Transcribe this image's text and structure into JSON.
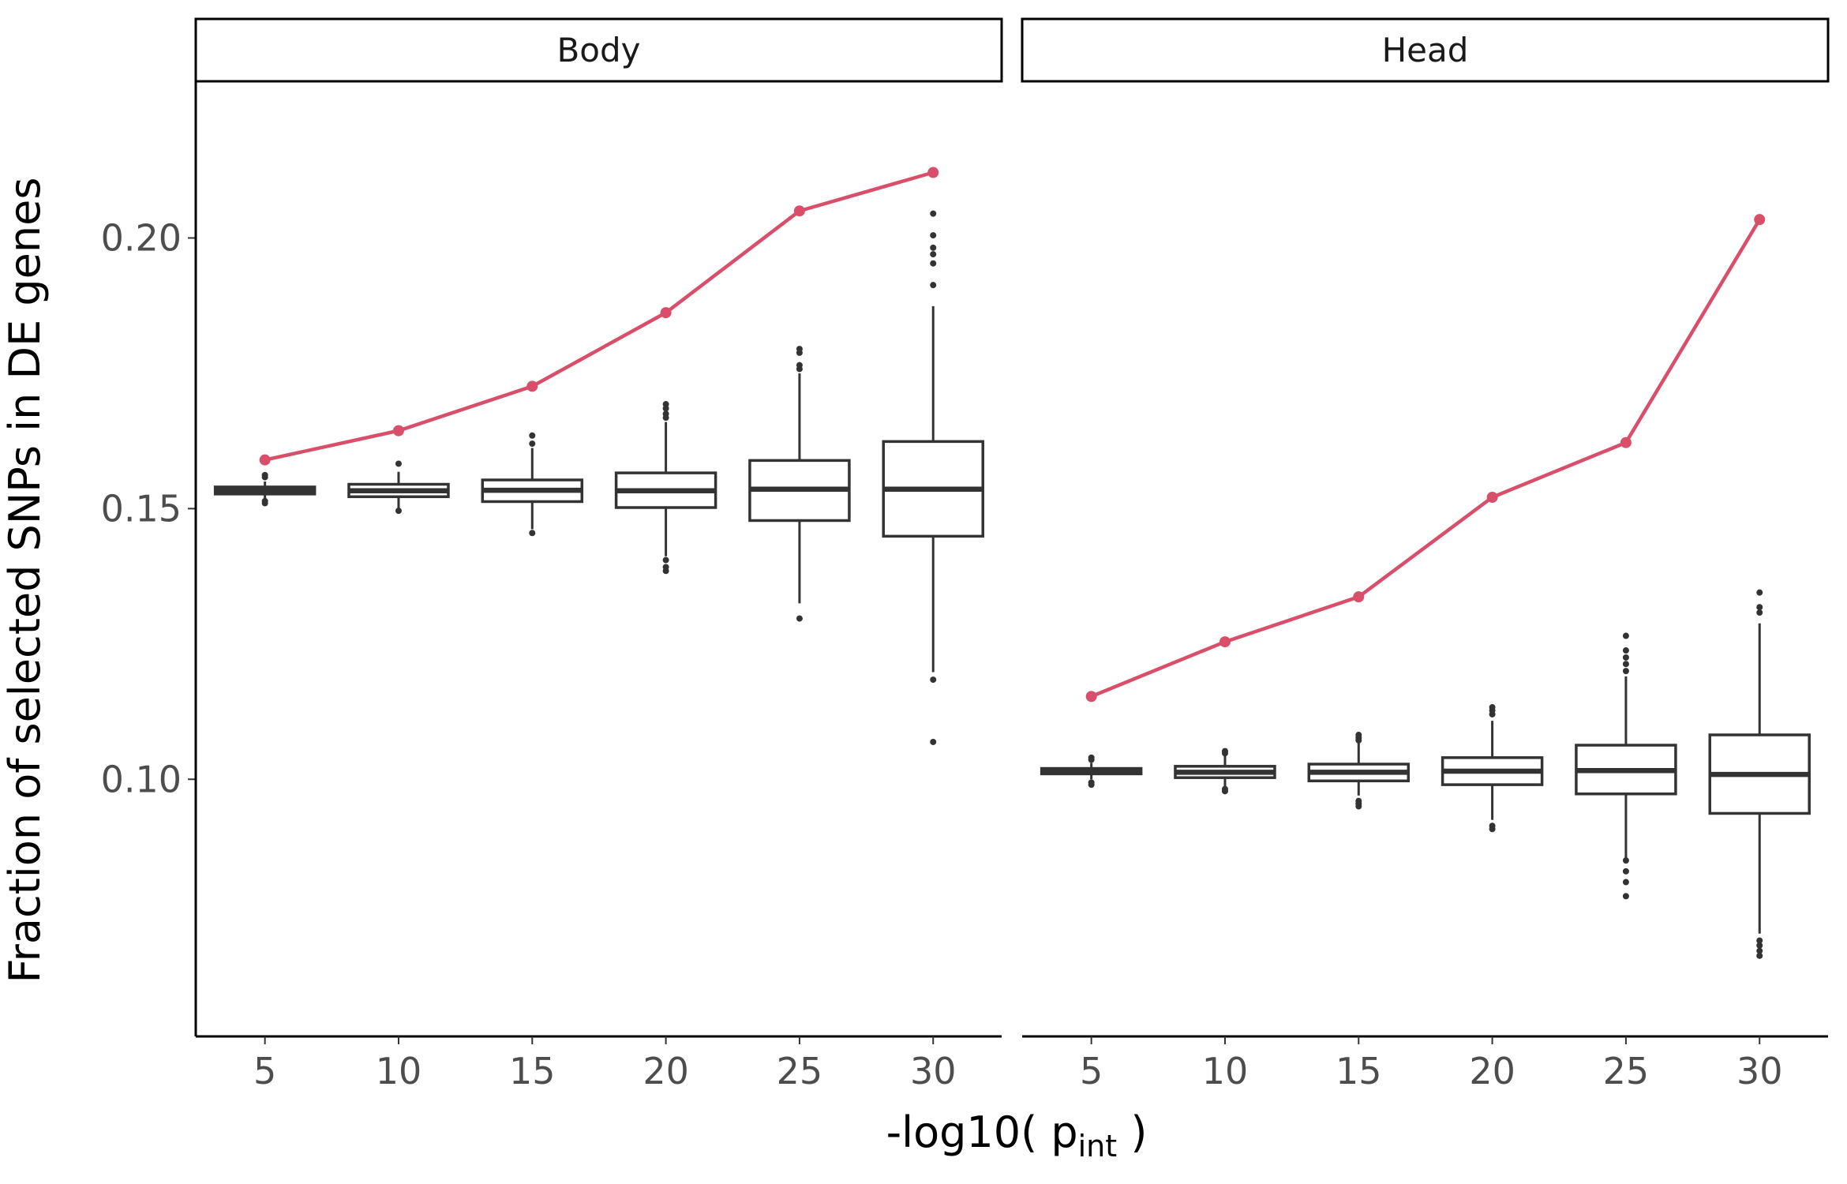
{
  "chart_data": {
    "type": "box",
    "xlabel_main": "-log10( p",
    "xlabel_sub": "int",
    "xlabel_end": " )",
    "ylabel": "Fraction of selected SNPs in DE genes",
    "x_ticks": [
      "5",
      "10",
      "15",
      "20",
      "25",
      "30"
    ],
    "y_ticks": [
      {
        "value": 0.1,
        "label": "0.10"
      },
      {
        "value": 0.15,
        "label": "0.15"
      },
      {
        "value": 0.2,
        "label": "0.20"
      }
    ],
    "ylim": [
      0.0525,
      0.2288
    ],
    "line_color": "#d94f6a",
    "box_color": "#333333",
    "panels": [
      {
        "name": "Body",
        "observed": [
          0.159,
          0.1644,
          0.1726,
          0.1862,
          0.205,
          0.2121
        ],
        "boxes": [
          {
            "x": "5",
            "lo": 0.1518,
            "q1": 0.1527,
            "med": 0.1533,
            "q3": 0.154,
            "hi": 0.155,
            "out": [
              0.151,
              0.1514,
              0.1558,
              0.1562
            ]
          },
          {
            "x": "10",
            "lo": 0.15,
            "q1": 0.1522,
            "med": 0.1533,
            "q3": 0.1545,
            "hi": 0.1568,
            "out": [
              0.1496,
              0.1583
            ]
          },
          {
            "x": "15",
            "lo": 0.1462,
            "q1": 0.1513,
            "med": 0.1534,
            "q3": 0.1553,
            "hi": 0.1612,
            "out": [
              0.1455,
              0.162,
              0.1635
            ]
          },
          {
            "x": "20",
            "lo": 0.1412,
            "q1": 0.1502,
            "med": 0.1533,
            "q3": 0.1566,
            "hi": 0.166,
            "out": [
              0.1385,
              0.1392,
              0.1405,
              0.1668,
              0.1675,
              0.1685,
              0.1693
            ]
          },
          {
            "x": "25",
            "lo": 0.1325,
            "q1": 0.1478,
            "med": 0.1536,
            "q3": 0.1589,
            "hi": 0.175,
            "out": [
              0.1297,
              0.1758,
              0.1765,
              0.1788,
              0.1795
            ]
          },
          {
            "x": "30",
            "lo": 0.1198,
            "q1": 0.1449,
            "med": 0.1536,
            "q3": 0.1624,
            "hi": 0.1874,
            "out": [
              0.1069,
              0.1184,
              0.1913,
              0.1953,
              0.197,
              0.1982,
              0.2005,
              0.2045
            ]
          }
        ]
      },
      {
        "name": "Head",
        "observed": [
          0.1153,
          0.1254,
          0.1337,
          0.1521,
          0.1622,
          0.2034
        ],
        "boxes": [
          {
            "x": "5",
            "lo": 0.1,
            "q1": 0.101,
            "med": 0.1015,
            "q3": 0.102,
            "hi": 0.103,
            "out": [
              0.099,
              0.0994,
              0.1036,
              0.104
            ]
          },
          {
            "x": "10",
            "lo": 0.0985,
            "q1": 0.1003,
            "med": 0.1013,
            "q3": 0.1024,
            "hi": 0.1043,
            "out": [
              0.0978,
              0.0982,
              0.1048,
              0.1052
            ]
          },
          {
            "x": "15",
            "lo": 0.097,
            "q1": 0.0997,
            "med": 0.1013,
            "q3": 0.1028,
            "hi": 0.1068,
            "out": [
              0.095,
              0.0955,
              0.096,
              0.1072,
              0.1077,
              0.1082
            ]
          },
          {
            "x": "20",
            "lo": 0.0925,
            "q1": 0.099,
            "med": 0.1015,
            "q3": 0.104,
            "hi": 0.1108,
            "out": [
              0.0908,
              0.0914,
              0.112,
              0.1127,
              0.1133
            ]
          },
          {
            "x": "25",
            "lo": 0.0855,
            "q1": 0.0973,
            "med": 0.1016,
            "q3": 0.1063,
            "hi": 0.119,
            "out": [
              0.0784,
              0.081,
              0.083,
              0.085,
              0.12,
              0.1213,
              0.1225,
              0.1238,
              0.1265
            ]
          },
          {
            "x": "30",
            "lo": 0.0715,
            "q1": 0.0937,
            "med": 0.1009,
            "q3": 0.1082,
            "hi": 0.1288,
            "out": [
              0.0674,
              0.0683,
              0.0693,
              0.0702,
              0.1308,
              0.1318,
              0.1345
            ]
          }
        ]
      }
    ]
  }
}
